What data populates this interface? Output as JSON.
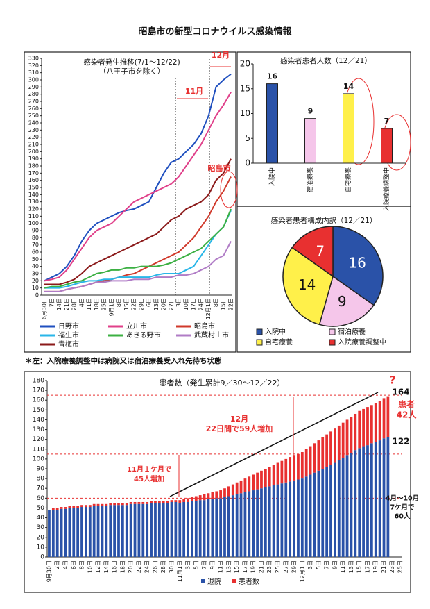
{
  "title": "昭島市の新型コロナウイルス感染情報",
  "note": "＊左：入院療養調整中は病院又は宿泊療養受入れ先待ち状態",
  "chart_data": [
    {
      "type": "line",
      "title": "感染者発生推移(7/1～12/22)",
      "subtitle": "（八王子市を除く）",
      "categories": [
        "6月30日",
        "7日",
        "14日",
        "21日",
        "28日",
        "4日",
        "11日",
        "18日",
        "25日",
        "9月1日",
        "8日",
        "15日",
        "22日",
        "29日",
        "6日",
        "13日",
        "20日",
        "27日",
        "3日",
        "10日",
        "17日",
        "24日",
        "12月1日",
        "8日",
        "15日",
        "22日"
      ],
      "series": [
        {
          "name": "日野市",
          "color": "#1f4fbf",
          "values": [
            20,
            25,
            30,
            40,
            55,
            75,
            90,
            100,
            105,
            110,
            115,
            118,
            120,
            125,
            130,
            150,
            170,
            185,
            190,
            200,
            210,
            225,
            250,
            290,
            300,
            308
          ]
        },
        {
          "name": "立川市",
          "color": "#e0408a",
          "values": [
            20,
            22,
            25,
            35,
            50,
            65,
            80,
            90,
            95,
            100,
            110,
            120,
            130,
            135,
            140,
            145,
            150,
            155,
            165,
            180,
            195,
            210,
            230,
            250,
            265,
            283
          ]
        },
        {
          "name": "昭島市",
          "color": "#d0392b",
          "values": [
            5,
            5,
            5,
            8,
            10,
            12,
            15,
            18,
            20,
            22,
            25,
            28,
            30,
            35,
            40,
            45,
            50,
            55,
            60,
            70,
            80,
            95,
            110,
            130,
            145,
            165
          ]
        },
        {
          "name": "福生市",
          "color": "#29b6e8",
          "values": [
            10,
            10,
            10,
            12,
            15,
            18,
            20,
            20,
            22,
            22,
            25,
            25,
            25,
            25,
            25,
            28,
            30,
            30,
            30,
            35,
            40,
            55,
            70,
            85,
            95,
            118
          ]
        },
        {
          "name": "あきる野市",
          "color": "#3cb043",
          "values": [
            10,
            12,
            12,
            15,
            18,
            20,
            25,
            30,
            32,
            35,
            35,
            38,
            38,
            40,
            40,
            40,
            42,
            45,
            50,
            55,
            60,
            65,
            75,
            85,
            95,
            120
          ]
        },
        {
          "name": "武蔵村山市",
          "color": "#b07cc6",
          "values": [
            5,
            5,
            5,
            8,
            10,
            12,
            15,
            18,
            18,
            20,
            20,
            20,
            22,
            22,
            22,
            25,
            25,
            25,
            28,
            28,
            30,
            35,
            40,
            50,
            55,
            75
          ]
        },
        {
          "name": "青梅市",
          "color": "#8b1a1a",
          "values": [
            15,
            15,
            15,
            18,
            22,
            30,
            40,
            45,
            50,
            55,
            60,
            65,
            70,
            75,
            80,
            85,
            95,
            105,
            110,
            120,
            125,
            130,
            140,
            160,
            170,
            190
          ]
        }
      ],
      "ylim": [
        0,
        330
      ],
      "yticks": [
        0,
        10,
        20,
        30,
        40,
        50,
        60,
        70,
        80,
        90,
        100,
        110,
        120,
        130,
        140,
        150,
        160,
        170,
        180,
        190,
        200,
        210,
        220,
        230,
        240,
        250,
        260,
        270,
        280,
        290,
        300,
        310,
        320,
        330
      ],
      "annotations": [
        "12月",
        "11月",
        "昭島市"
      ]
    },
    {
      "type": "bar",
      "title": "感染者患者人数（12／21）",
      "categories": [
        "入院中",
        "宿泊療養",
        "自宅療養",
        "入院療養調整中"
      ],
      "values": [
        16,
        9,
        14,
        7
      ],
      "colors": [
        "#2a52a8",
        "#f5c6ea",
        "#fff04a",
        "#e83030"
      ],
      "ylim": [
        0,
        20
      ],
      "yticks": [
        0,
        5,
        10,
        15,
        20
      ]
    },
    {
      "type": "pie",
      "title": "感染者患者構成内訳（12／21）",
      "categories": [
        "入院中",
        "宿泊療養",
        "自宅療養",
        "入院療養調整中"
      ],
      "values": [
        16,
        9,
        14,
        7
      ],
      "colors": [
        "#2a52a8",
        "#f5c6ea",
        "#fff04a",
        "#e83030"
      ]
    },
    {
      "type": "stacked_bar",
      "title": "患者数（発生累計9／30～12／22）",
      "categories": [
        "9月30日",
        null,
        "2日",
        null,
        "4日",
        null,
        "6日",
        null,
        "8日",
        null,
        "10日",
        null,
        "12日",
        null,
        "14日",
        null,
        "16日",
        null,
        "18日",
        null,
        "20日",
        null,
        "22日",
        null,
        "24日",
        null,
        "26日",
        null,
        "28日",
        null,
        "30日",
        null,
        "11月1日",
        null,
        "3日",
        null,
        "5日",
        null,
        "7日",
        null,
        "9日",
        null,
        "11日",
        null,
        "13日",
        null,
        "15日",
        null,
        "17日",
        null,
        "19日",
        null,
        "21日",
        null,
        "23日",
        null,
        "25日",
        null,
        "27日",
        null,
        "29日",
        null,
        "12月1日",
        null,
        "3日",
        null,
        "5日",
        null,
        "7日",
        null,
        "9日",
        null,
        "11日",
        null,
        "13日",
        null,
        "15日",
        null,
        "17日",
        null,
        "19日",
        null,
        "21日",
        null,
        "23日",
        null,
        "25日"
      ],
      "series": [
        {
          "name": "退院",
          "color": "#2a52a8",
          "values": [
            48,
            48,
            48,
            49,
            49,
            50,
            50,
            50,
            51,
            51,
            51,
            52,
            52,
            52,
            52,
            53,
            53,
            53,
            53,
            53,
            54,
            54,
            54,
            54,
            54,
            55,
            55,
            55,
            55,
            55,
            56,
            56,
            55,
            56,
            56,
            57,
            57,
            58,
            58,
            59,
            59,
            60,
            60,
            61,
            62,
            63,
            64,
            65,
            66,
            67,
            68,
            69,
            70,
            71,
            72,
            73,
            74,
            75,
            76,
            77,
            78,
            79,
            80,
            82,
            84,
            86,
            88,
            90,
            92,
            94,
            96,
            99,
            101,
            104,
            106,
            109,
            111,
            113,
            114,
            116,
            117,
            119,
            121,
            122,
            null,
            null,
            null
          ]
        },
        {
          "name": "患者数",
          "color": "#e83030",
          "values": [
            0,
            2,
            2,
            2,
            2,
            2,
            2,
            2,
            2,
            2,
            2,
            2,
            2,
            2,
            2,
            2,
            2,
            2,
            2,
            2,
            2,
            2,
            2,
            2,
            2,
            2,
            2,
            2,
            2,
            2,
            2,
            2,
            3,
            3,
            4,
            4,
            5,
            5,
            6,
            6,
            7,
            7,
            8,
            9,
            10,
            11,
            12,
            13,
            14,
            15,
            16,
            17,
            18,
            19,
            20,
            21,
            22,
            23,
            24,
            25,
            26,
            26,
            27,
            28,
            29,
            30,
            31,
            32,
            33,
            34,
            35,
            35,
            36,
            36,
            37,
            37,
            38,
            38,
            39,
            39,
            40,
            40,
            41,
            42,
            null,
            null,
            null
          ]
        }
      ],
      "ylim": [
        0,
        180
      ],
      "yticks": [
        0,
        10,
        20,
        30,
        40,
        50,
        60,
        70,
        80,
        90,
        100,
        110,
        120,
        130,
        140,
        150,
        160,
        170,
        180
      ],
      "reference_lines": [
        165,
        105,
        60
      ],
      "annotations": [
        "12月",
        "22日間で59人増加",
        "11月１ケ月で",
        "45人増加",
        "4月～10月",
        "7ケ月で",
        "60人",
        "164",
        "122",
        "患者",
        "42人",
        "?"
      ]
    }
  ]
}
